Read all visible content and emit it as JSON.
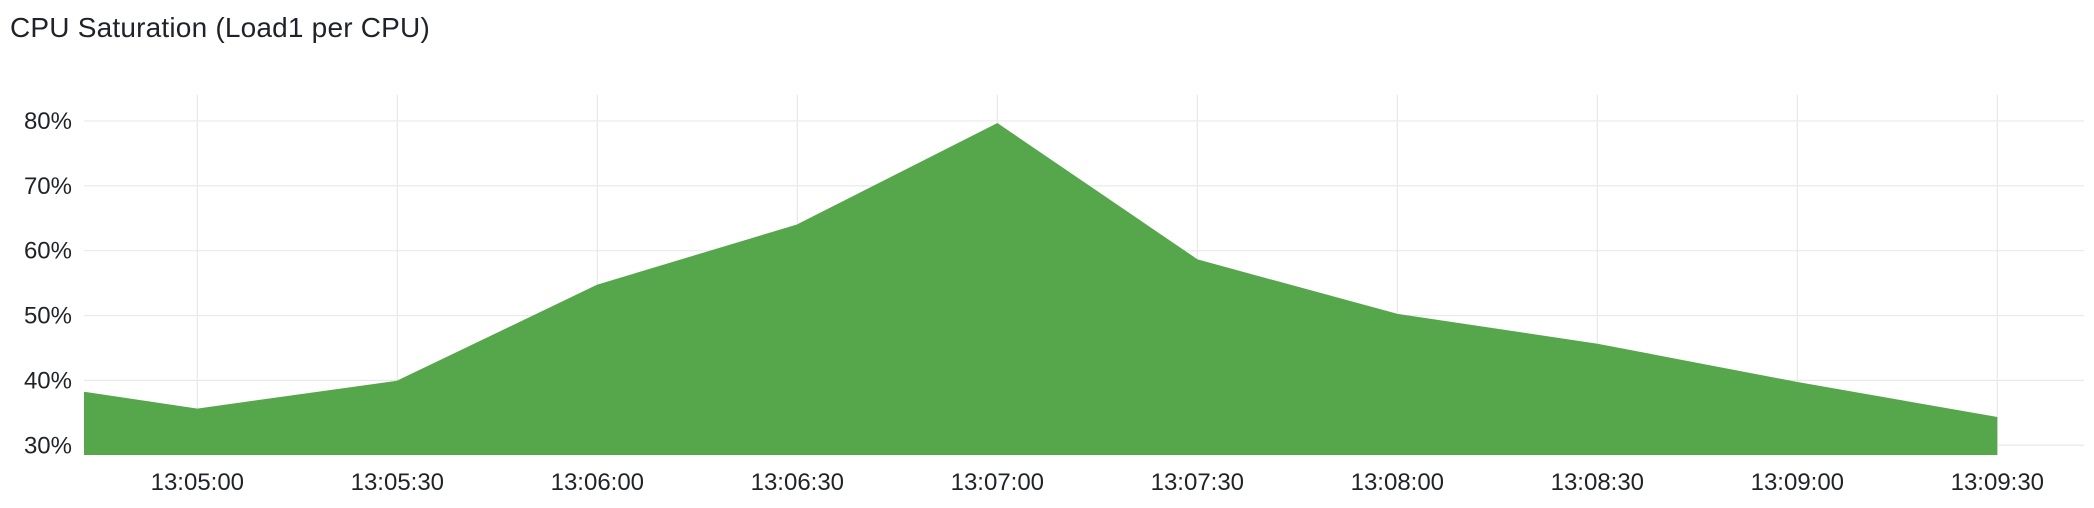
{
  "panel": {
    "title": "CPU Saturation (Load1 per CPU)"
  },
  "chart_data": {
    "type": "area",
    "title": "CPU Saturation (Load1 per CPU)",
    "xlabel": "",
    "ylabel": "",
    "x_tick_labels": [
      "13:05:00",
      "13:05:30",
      "13:06:00",
      "13:06:30",
      "13:07:00",
      "13:07:30",
      "13:08:00",
      "13:08:30",
      "13:09:00",
      "13:09:30"
    ],
    "y_tick_labels": [
      "30%",
      "40%",
      "50%",
      "60%",
      "70%",
      "80%"
    ],
    "y_ticks": [
      30,
      40,
      50,
      60,
      70,
      80
    ],
    "ylim": [
      28.5,
      84
    ],
    "xlim": [
      "13:04:43",
      "13:09:43"
    ],
    "grid": true,
    "legend": "none",
    "series": [
      {
        "color": "#56a64b",
        "x": [
          "13:04:43",
          "13:05:00",
          "13:05:30",
          "13:06:00",
          "13:06:30",
          "13:07:00",
          "13:07:30",
          "13:08:00",
          "13:08:30",
          "13:09:00",
          "13:09:30"
        ],
        "values": [
          38.1,
          35.5,
          39.8,
          54.6,
          63.9,
          79.5,
          58.5,
          50.1,
          45.5,
          39.6,
          34.2
        ]
      }
    ]
  }
}
